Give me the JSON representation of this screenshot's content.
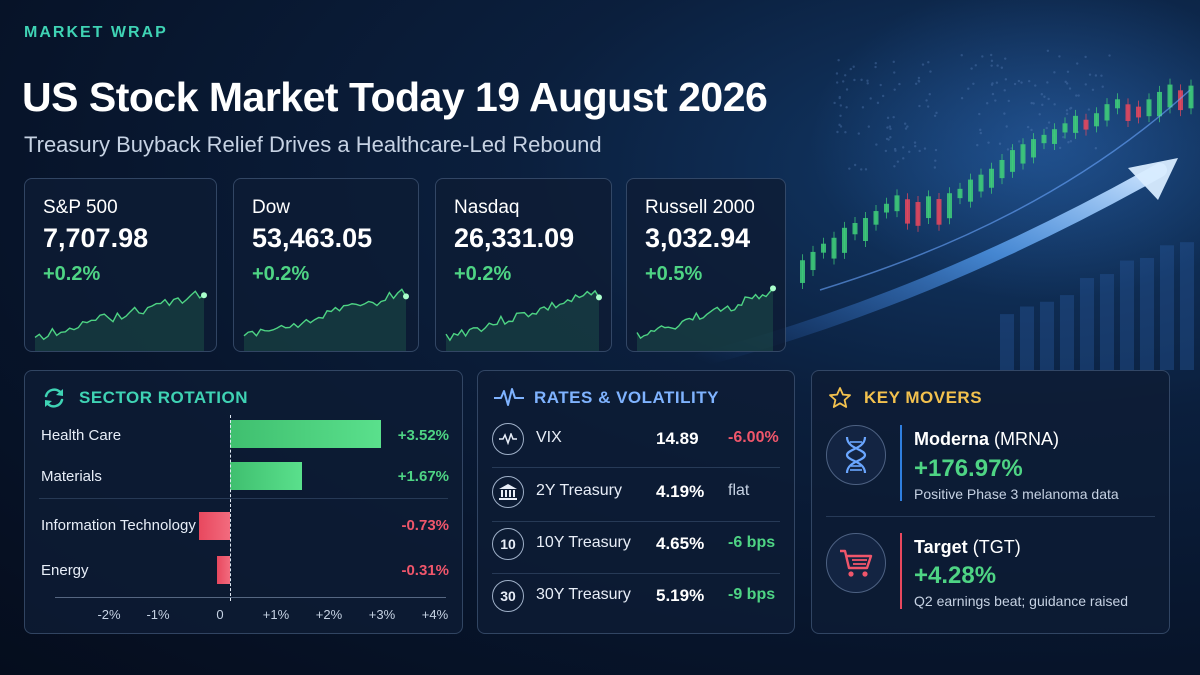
{
  "header": {
    "eyebrow": "MARKET WRAP",
    "title": "US Stock Market Today 19 August 2026",
    "subtitle": "Treasury Buyback Relief Drives a Healthcare-Led Rebound"
  },
  "indices": [
    {
      "name": "S&P 500",
      "value": "7,707.98",
      "change": "+0.2%"
    },
    {
      "name": "Dow",
      "value": "53,463.05",
      "change": "+0.2%"
    },
    {
      "name": "Nasdaq",
      "value": "26,331.09",
      "change": "+0.2%"
    },
    {
      "name": "Russell 2000",
      "value": "3,032.94",
      "change": "+0.5%"
    }
  ],
  "sector_rotation": {
    "title": "SECTOR ROTATION",
    "icon": "refresh-icon",
    "items": [
      {
        "label": "Health Care",
        "value": 3.52,
        "display": "+3.52%"
      },
      {
        "label": "Materials",
        "value": 1.67,
        "display": "+1.67%"
      },
      {
        "label": "Information Technology",
        "value": -0.73,
        "display": "-0.73%"
      },
      {
        "label": "Energy",
        "value": -0.31,
        "display": "-0.31%"
      }
    ],
    "axis_ticks": [
      "-2%",
      "-1%",
      "0",
      "+1%",
      "+2%",
      "+3%",
      "+4%"
    ]
  },
  "rates": {
    "title": "RATES & VOLATILITY",
    "icon": "pulse-icon",
    "rows": [
      {
        "icon": "pulse-icon",
        "icon_text": "",
        "name": "VIX",
        "value": "14.89",
        "change": "-6.00%",
        "tone": "neg"
      },
      {
        "icon": "bank-icon",
        "icon_text": "",
        "name": "2Y Treasury",
        "value": "4.19%",
        "change": "flat",
        "tone": "flat"
      },
      {
        "icon": "ten-year-icon",
        "icon_text": "10",
        "name": "10Y Treasury",
        "value": "4.65%",
        "change": "-6 bps",
        "tone": "pos"
      },
      {
        "icon": "thirty-year-icon",
        "icon_text": "30",
        "name": "30Y Treasury",
        "value": "5.19%",
        "change": "-9 bps",
        "tone": "pos"
      }
    ]
  },
  "movers": {
    "title": "KEY MOVERS",
    "icon": "star-icon",
    "items": [
      {
        "icon": "dna-icon",
        "name": "Moderna",
        "ticker": "(MRNA)",
        "change": "+176.97%",
        "note": "Positive Phase 3 melanoma data"
      },
      {
        "icon": "shopping-cart-icon",
        "name": "Target",
        "ticker": "(TGT)",
        "change": "+4.28%",
        "note": "Q2 earnings beat; guidance raised"
      }
    ]
  },
  "colors": {
    "accent": "#3fd3b4",
    "positive": "#4ed484",
    "negative": "#f0566b",
    "movers_title": "#f2c14e",
    "rates_title": "#7fb3ff"
  }
}
